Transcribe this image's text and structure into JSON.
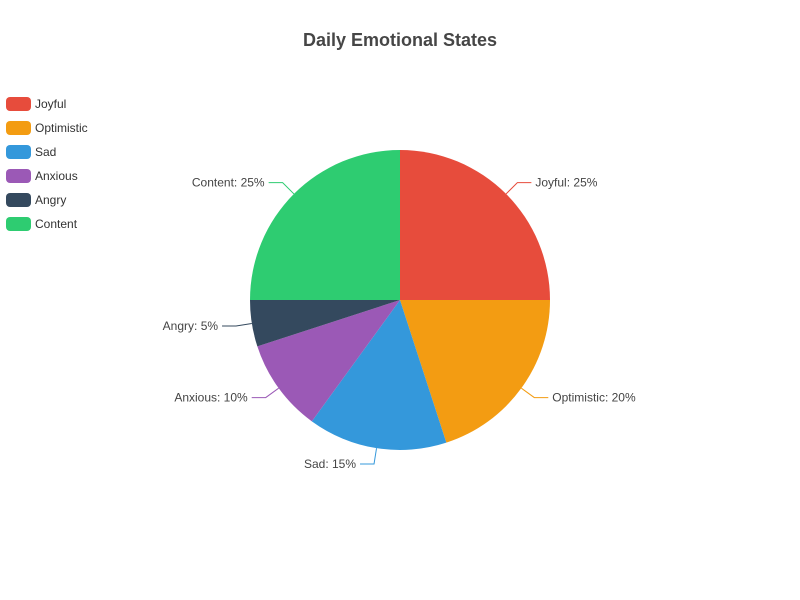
{
  "chart_data": {
    "type": "pie",
    "title": "Daily Emotional States",
    "legend_position": "top-left",
    "slices": [
      {
        "name": "Joyful",
        "value": 25,
        "label": "Joyful: 25%",
        "color": "#e74c3c"
      },
      {
        "name": "Optimistic",
        "value": 20,
        "label": "Optimistic: 20%",
        "color": "#f39c12"
      },
      {
        "name": "Sad",
        "value": 15,
        "label": "Sad: 15%",
        "color": "#3498db"
      },
      {
        "name": "Anxious",
        "value": 10,
        "label": "Anxious: 10%",
        "color": "#9b59b6"
      },
      {
        "name": "Angry",
        "value": 5,
        "label": "Angry: 5%",
        "color": "#34495e"
      },
      {
        "name": "Content",
        "value": 25,
        "label": "Content: 25%",
        "color": "#2ecc71"
      }
    ]
  }
}
